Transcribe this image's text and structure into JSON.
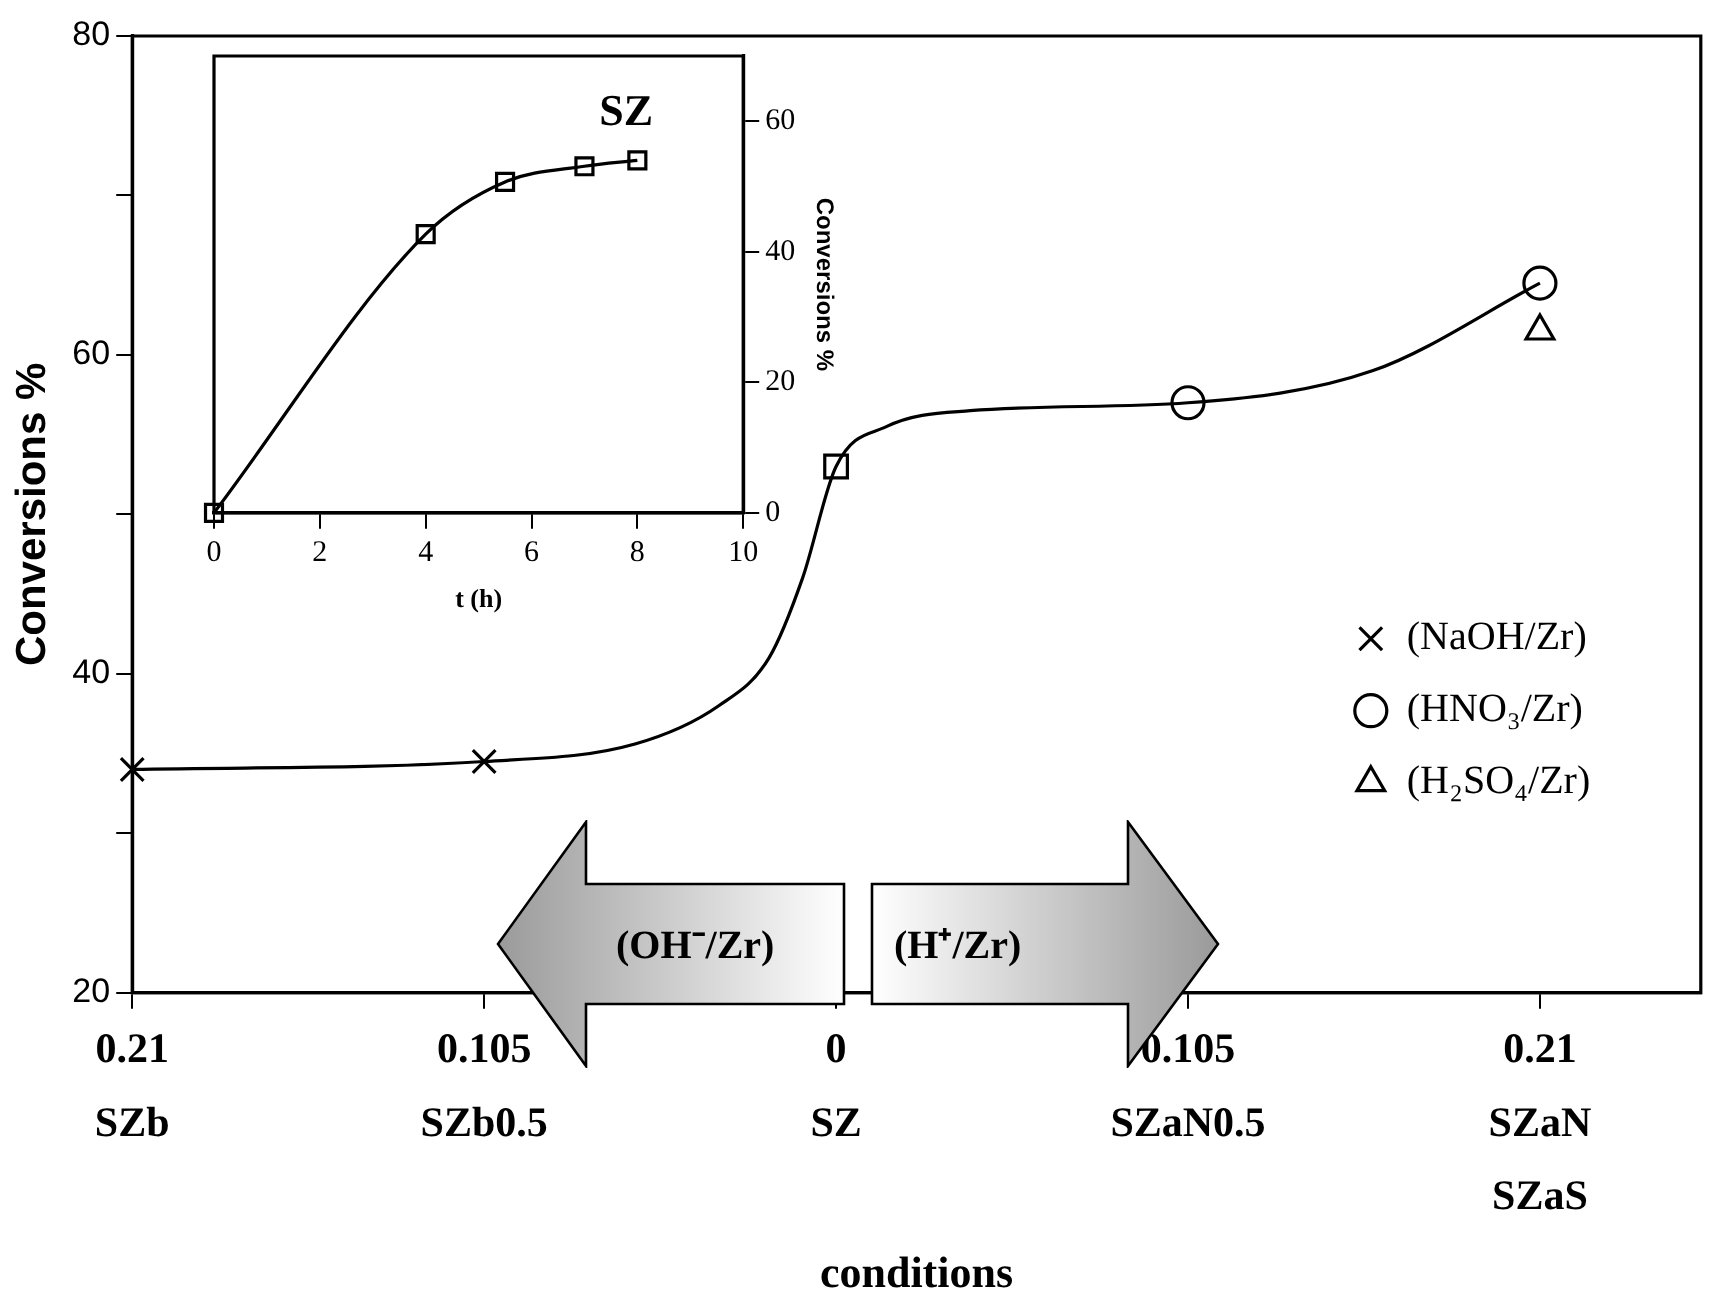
{
  "chart_data": [
    {
      "type": "scatter",
      "xlabel": "conditions",
      "ylabel": "Conversions %",
      "xlim": [
        -0.21,
        0.258
      ],
      "xticks": [
        {
          "value": -0.21,
          "label": "0.21\nSZb"
        },
        {
          "value": -0.105,
          "label": "0.105\nSZb0.5"
        },
        {
          "value": 0,
          "label": "0\nSZ"
        },
        {
          "value": 0.105,
          "label": "0.105\nSZaN0.5"
        },
        {
          "value": 0.21,
          "label": "0.21\nSZaN\nSZaS"
        }
      ],
      "ylim": [
        20,
        80
      ],
      "yticks": [
        20,
        {
          "value": 30,
          "label": null
        },
        40,
        {
          "value": 50,
          "label": null
        },
        60,
        {
          "value": 70,
          "label": null
        },
        80
      ],
      "grid": false,
      "legend": "right",
      "annotations": [
        "(OH⁻/Zr)",
        "(H⁺/Zr)"
      ],
      "series": [
        {
          "type": "line",
          "marker": "none",
          "color": "#000000",
          "x": [
            -0.21,
            -0.105,
            -0.06,
            -0.035,
            -0.02,
            -0.01,
            0,
            0.015,
            0.04,
            0.105,
            0.16,
            0.21
          ],
          "values": [
            34,
            34.5,
            35.6,
            38,
            41,
            46,
            53,
            55.5,
            56.5,
            57,
            59,
            64.5
          ]
        },
        {
          "name": "(NaOH/Zr)",
          "marker": "cross",
          "color": "#000000",
          "x": [
            -0.21,
            -0.105
          ],
          "values": [
            34,
            34.5
          ]
        },
        {
          "marker": "square",
          "color": "#000000",
          "x": [
            0
          ],
          "values": [
            53
          ]
        },
        {
          "name": "(HNO₃/Zr)",
          "marker": "circle",
          "color": "#000000",
          "x": [
            0.105,
            0.21
          ],
          "values": [
            57,
            64.5
          ]
        },
        {
          "name": "(H₂SO₄/Zr)",
          "marker": "triangle",
          "color": "#000000",
          "x": [
            0.21
          ],
          "values": [
            61.5
          ]
        }
      ]
    },
    {
      "type": "line",
      "title": "SZ",
      "xlabel": "t (h)",
      "y2label": "Conversions %",
      "xlim": [
        0,
        10
      ],
      "xticks": [
        0,
        2,
        4,
        6,
        8,
        10
      ],
      "y2lim": [
        0,
        70
      ],
      "y2ticks": [
        0,
        20,
        40,
        60
      ],
      "grid": false,
      "series": [
        {
          "marker": "square",
          "color": "#000000",
          "axis": "y2",
          "x": [
            0,
            4,
            5.5,
            7,
            8
          ],
          "values": [
            0,
            42.7,
            50.7,
            53.1,
            54
          ]
        }
      ]
    }
  ]
}
